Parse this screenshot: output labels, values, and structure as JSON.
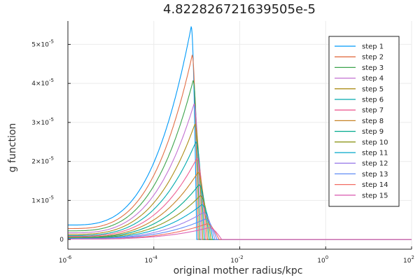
{
  "chart_data": {
    "type": "line",
    "title": "4.822826721639505e-5",
    "xlabel": "original mother radius/kpc",
    "ylabel": "g function",
    "xscale": "log",
    "xlim": [
      1e-06,
      100
    ],
    "ylim": [
      -2.5e-06,
      5.6e-05
    ],
    "grid": true,
    "legend_position": "top-right",
    "x_ticks": [
      {
        "base": "10",
        "exp": "-6",
        "value": 1e-06
      },
      {
        "base": "10",
        "exp": "-4",
        "value": 0.0001
      },
      {
        "base": "10",
        "exp": "-2",
        "value": 0.01
      },
      {
        "base": "10",
        "exp": "0",
        "value": 1
      },
      {
        "base": "10",
        "exp": "2",
        "value": 100
      }
    ],
    "y_ticks": [
      {
        "mant": "0",
        "exp": "",
        "value": 0
      },
      {
        "mant": "1×10",
        "exp": "-5",
        "value": 1e-05
      },
      {
        "mant": "2×10",
        "exp": "-5",
        "value": 2e-05
      },
      {
        "mant": "3×10",
        "exp": "-5",
        "value": 3e-05
      },
      {
        "mant": "4×10",
        "exp": "-5",
        "value": 4e-05
      },
      {
        "mant": "5×10",
        "exp": "-5",
        "value": 5e-05
      }
    ],
    "series": [
      {
        "name": "step 1",
        "color": "#009af9",
        "peak_x": 0.00074,
        "peak_y": 5.45e-05,
        "start_y": 3.7e-06,
        "cutoff_x": 0.001
      },
      {
        "name": "step 2",
        "color": "#e26f46",
        "peak_x": 0.00078,
        "peak_y": 4.72e-05,
        "start_y": 2.8e-06,
        "cutoff_x": 0.00108
      },
      {
        "name": "step 3",
        "color": "#3da44d",
        "peak_x": 0.00082,
        "peak_y": 4.07e-05,
        "start_y": 2.2e-06,
        "cutoff_x": 0.00117
      },
      {
        "name": "step 4",
        "color": "#c271d2",
        "peak_x": 0.00086,
        "peak_y": 3.47e-05,
        "start_y": 1.7e-06,
        "cutoff_x": 0.00127
      },
      {
        "name": "step 5",
        "color": "#ac8d18",
        "peak_x": 0.0009,
        "peak_y": 2.95e-05,
        "start_y": 1.3e-06,
        "cutoff_x": 0.00138
      },
      {
        "name": "step 6",
        "color": "#00a9ad",
        "peak_x": 0.00095,
        "peak_y": 2.5e-05,
        "start_y": 1e-06,
        "cutoff_x": 0.0015
      },
      {
        "name": "step 7",
        "color": "#ed5e93",
        "peak_x": 0.001,
        "peak_y": 2.08e-05,
        "start_y": 8e-07,
        "cutoff_x": 0.00163
      },
      {
        "name": "step 8",
        "color": "#c68225",
        "peak_x": 0.00106,
        "peak_y": 1.72e-05,
        "start_y": 6e-07,
        "cutoff_x": 0.00178
      },
      {
        "name": "step 9",
        "color": "#00a98d",
        "peak_x": 0.00112,
        "peak_y": 1.4e-05,
        "start_y": 5e-07,
        "cutoff_x": 0.00195
      },
      {
        "name": "step 10",
        "color": "#8e971d",
        "peak_x": 0.0012,
        "peak_y": 1.12e-05,
        "start_y": 4e-07,
        "cutoff_x": 0.00215
      },
      {
        "name": "step 11",
        "color": "#00a8cb",
        "peak_x": 0.0013,
        "peak_y": 8.9e-06,
        "start_y": 3e-07,
        "cutoff_x": 0.00238
      },
      {
        "name": "step 12",
        "color": "#9b7fe9",
        "peak_x": 0.00141,
        "peak_y": 6.9e-06,
        "start_y": 2e-07,
        "cutoff_x": 0.00264
      },
      {
        "name": "step 13",
        "color": "#618df6",
        "peak_x": 0.00155,
        "peak_y": 5.2e-06,
        "start_y": 2e-07,
        "cutoff_x": 0.00295
      },
      {
        "name": "step 14",
        "color": "#f16c62",
        "peak_x": 0.00171,
        "peak_y": 4e-06,
        "start_y": 1e-07,
        "cutoff_x": 0.0033
      },
      {
        "name": "step 15",
        "color": "#dd64b5",
        "peak_x": 0.0019,
        "peak_y": 3e-06,
        "start_y": 1e-07,
        "cutoff_x": 0.0038
      }
    ]
  }
}
